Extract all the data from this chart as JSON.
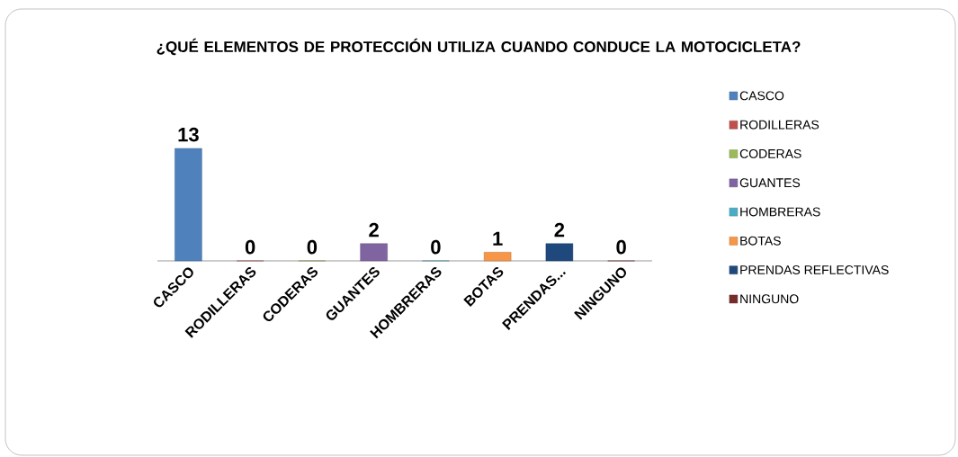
{
  "chart_data": {
    "type": "bar",
    "title": "¿QUÉ ELEMENTOS DE PROTECCIÓN UTILIZA CUANDO CONDUCE LA MOTOCICLETA?",
    "categories": [
      "CASCO",
      "RODILLERAS",
      "CODERAS",
      "GUANTES",
      "HOMBRERAS",
      "BOTAS",
      "PRENDAS...",
      "NINGUNO"
    ],
    "series": [
      {
        "name": "CASCO",
        "color": "#4f81bd",
        "values": [
          13,
          null,
          null,
          null,
          null,
          null,
          null,
          null
        ]
      },
      {
        "name": "RODILLERAS",
        "color": "#c0504d",
        "values": [
          null,
          0,
          null,
          null,
          null,
          null,
          null,
          null
        ]
      },
      {
        "name": "CODERAS",
        "color": "#9bbb59",
        "values": [
          null,
          null,
          0,
          null,
          null,
          null,
          null,
          null
        ]
      },
      {
        "name": "GUANTES",
        "color": "#8064a2",
        "values": [
          null,
          null,
          null,
          2,
          null,
          null,
          null,
          null
        ]
      },
      {
        "name": "HOMBRERAS",
        "color": "#4bacc6",
        "values": [
          null,
          null,
          null,
          null,
          0,
          null,
          null,
          null
        ]
      },
      {
        "name": "BOTAS",
        "color": "#f79646",
        "values": [
          null,
          null,
          null,
          null,
          null,
          1,
          null,
          null
        ]
      },
      {
        "name": "PRENDAS REFLECTIVAS",
        "color": "#1f497d",
        "values": [
          null,
          null,
          null,
          null,
          null,
          null,
          2,
          null
        ]
      },
      {
        "name": "NINGUNO",
        "color": "#772c2a",
        "values": [
          null,
          null,
          null,
          null,
          null,
          null,
          null,
          0
        ]
      }
    ],
    "data_labels": true,
    "legend": "right"
  }
}
